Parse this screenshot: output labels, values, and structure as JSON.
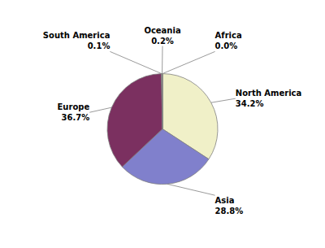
{
  "chart_data": {
    "type": "pie",
    "categories": [
      "North America",
      "Asia",
      "Europe",
      "South America",
      "Oceania",
      "Africa"
    ],
    "values": [
      34.2,
      28.8,
      36.7,
      0.1,
      0.2,
      0.0
    ],
    "value_labels": [
      "34.2%",
      "28.8%",
      "36.7%",
      "0.1%",
      "0.2%",
      "0.0%"
    ],
    "colors": [
      "#f0f0c8",
      "#8080cc",
      "#7b3060",
      "#d0d0a0",
      "#c8c8b8",
      "#b0b0d0"
    ],
    "data_labels": true,
    "legend": false
  }
}
